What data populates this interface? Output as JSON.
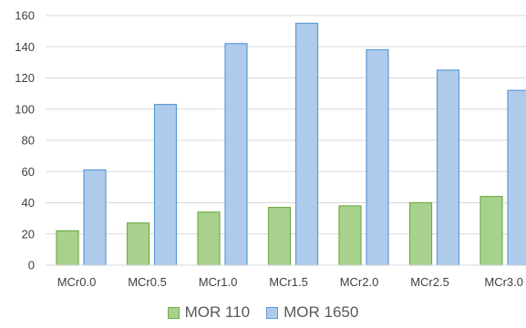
{
  "chart_data": {
    "type": "bar",
    "categories": [
      "MCr0.0",
      "MCr0.5",
      "MCr1.0",
      "MCr1.5",
      "MCr2.0",
      "MCr2.5",
      "MCr3.0"
    ],
    "series": [
      {
        "name": "MOR 110",
        "values": [
          22,
          27,
          34,
          37,
          38,
          40,
          44
        ],
        "fill": "#a9d18e",
        "stroke": "#70ad47"
      },
      {
        "name": "MOR 1650",
        "values": [
          61,
          103,
          142,
          155,
          138,
          125,
          112
        ],
        "fill": "#aecbec",
        "stroke": "#5b9bd5"
      }
    ],
    "ylim": [
      0,
      160
    ],
    "yticks": [
      0,
      20,
      40,
      60,
      80,
      100,
      120,
      140,
      160
    ],
    "grid": true,
    "legend_position": "bottom",
    "title": "",
    "xlabel": "",
    "ylabel": ""
  }
}
